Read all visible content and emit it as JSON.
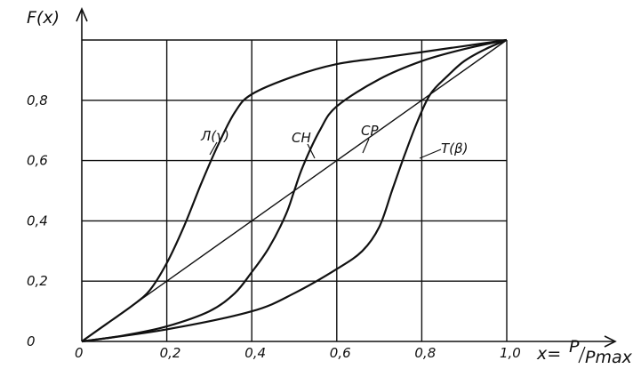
{
  "chart_data": {
    "type": "line",
    "title": "",
    "ylabel": "F(x)",
    "xlabel": "x= P/Pmax",
    "xlabel_parts": {
      "prefix": "x=",
      "numerator": "P",
      "denominator": "Pmax"
    },
    "xlim": [
      0,
      1.0
    ],
    "ylim": [
      0,
      1.0
    ],
    "grid": true,
    "legend": "none",
    "x_ticks": [
      {
        "value": 0,
        "label": "0"
      },
      {
        "value": 0.2,
        "label": "0,2"
      },
      {
        "value": 0.4,
        "label": "0,4"
      },
      {
        "value": 0.6,
        "label": "0,6"
      },
      {
        "value": 0.8,
        "label": "0,8"
      },
      {
        "value": 1.0,
        "label": "1,0"
      }
    ],
    "y_ticks": [
      {
        "value": 0,
        "label": "0"
      },
      {
        "value": 0.2,
        "label": "0,2"
      },
      {
        "value": 0.4,
        "label": "0,4"
      },
      {
        "value": 0.6,
        "label": "0,6"
      },
      {
        "value": 0.8,
        "label": "0,8"
      }
    ],
    "series": [
      {
        "name": "Л(γ)",
        "x": [
          0,
          0.06,
          0.12,
          0.16,
          0.2,
          0.24,
          0.28,
          0.32,
          0.36,
          0.4,
          0.5,
          0.6,
          0.7,
          0.8,
          0.9,
          1.0
        ],
        "y": [
          0,
          0.06,
          0.12,
          0.17,
          0.26,
          0.38,
          0.52,
          0.65,
          0.76,
          0.82,
          0.88,
          0.92,
          0.94,
          0.96,
          0.98,
          1.0
        ]
      },
      {
        "name": "CH",
        "x": [
          0,
          0.1,
          0.2,
          0.3,
          0.36,
          0.4,
          0.44,
          0.48,
          0.5,
          0.52,
          0.56,
          0.6,
          0.7,
          0.8,
          0.9,
          1.0
        ],
        "y": [
          0,
          0.02,
          0.05,
          0.1,
          0.16,
          0.23,
          0.31,
          0.42,
          0.5,
          0.58,
          0.7,
          0.78,
          0.87,
          0.93,
          0.97,
          1.0
        ]
      },
      {
        "name": "CP",
        "x": [
          0,
          0.2,
          0.4,
          0.6,
          0.8,
          1.0
        ],
        "y": [
          0,
          0.2,
          0.4,
          0.6,
          0.8,
          1.0
        ]
      },
      {
        "name": "T(β)",
        "x": [
          0,
          0.2,
          0.4,
          0.5,
          0.6,
          0.66,
          0.7,
          0.73,
          0.76,
          0.79,
          0.82,
          0.86,
          0.9,
          0.95,
          1.0
        ],
        "y": [
          0,
          0.04,
          0.1,
          0.16,
          0.24,
          0.3,
          0.38,
          0.5,
          0.62,
          0.73,
          0.82,
          0.88,
          0.93,
          0.97,
          1.0
        ]
      }
    ]
  }
}
